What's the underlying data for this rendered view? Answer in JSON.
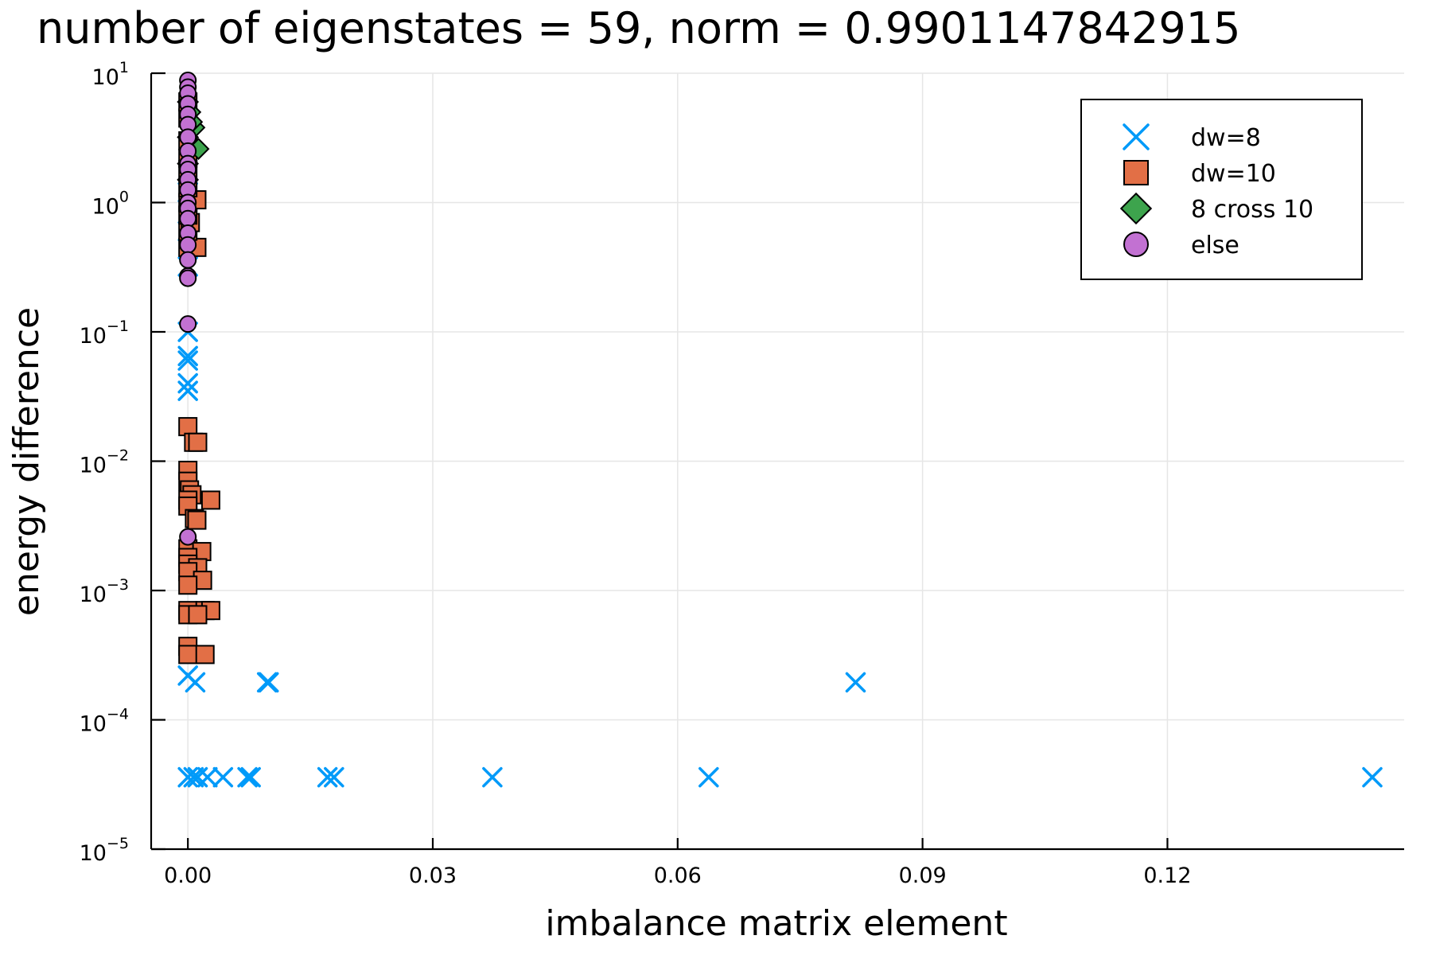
{
  "chart_data": {
    "type": "scatter",
    "title": "number of eigenstates = 59, norm = 0.9901147842915",
    "xlabel": "imbalance matrix element",
    "ylabel": "energy difference",
    "xlim": [
      -0.0045,
      0.149
    ],
    "ylim": [
      1e-05,
      10
    ],
    "yscale": "log",
    "grid": true,
    "legend_position": "top-right",
    "x_ticks": [
      {
        "value": 0.0,
        "label": "0.00"
      },
      {
        "value": 0.03,
        "label": "0.03"
      },
      {
        "value": 0.06,
        "label": "0.06"
      },
      {
        "value": 0.09,
        "label": "0.09"
      },
      {
        "value": 0.12,
        "label": "0.12"
      }
    ],
    "y_ticks": [
      {
        "value": 1e-05,
        "base": "10",
        "exp": "−5"
      },
      {
        "value": 0.0001,
        "base": "10",
        "exp": "−4"
      },
      {
        "value": 0.001,
        "base": "10",
        "exp": "−3"
      },
      {
        "value": 0.01,
        "base": "10",
        "exp": "−2"
      },
      {
        "value": 0.1,
        "base": "10",
        "exp": "−1"
      },
      {
        "value": 1,
        "base": "10",
        "exp": "0"
      },
      {
        "value": 10,
        "base": "10",
        "exp": "1"
      }
    ],
    "series": [
      {
        "name": "dw=8",
        "marker": "x",
        "color": "#009af9",
        "points": [
          [
            0.0,
            0.00022
          ],
          [
            0.0009,
            0.000195
          ],
          [
            0.0097,
            0.000195
          ],
          [
            0.0099,
            0.000195
          ],
          [
            0.0818,
            0.000195
          ],
          [
            0.0,
            3.6e-05
          ],
          [
            0.0007,
            3.6e-05
          ],
          [
            0.0012,
            3.6e-05
          ],
          [
            0.0024,
            3.6e-05
          ],
          [
            0.0043,
            3.6e-05
          ],
          [
            0.0073,
            3.6e-05
          ],
          [
            0.0077,
            3.6e-05
          ],
          [
            0.0171,
            3.6e-05
          ],
          [
            0.0179,
            3.6e-05
          ],
          [
            0.0373,
            3.6e-05
          ],
          [
            0.0638,
            3.6e-05
          ],
          [
            0.1451,
            3.6e-05
          ],
          [
            0.0,
            0.1
          ],
          [
            0.0,
            0.065
          ],
          [
            0.0,
            0.06
          ],
          [
            0.0,
            0.04
          ],
          [
            0.0,
            0.035
          ],
          [
            0.0,
            0.32
          ],
          [
            0.0,
            0.6
          ],
          [
            0.0,
            1.2
          ]
        ]
      },
      {
        "name": "dw=10",
        "marker": "square",
        "color": "#e26f46",
        "points": [
          [
            0.0,
            0.0185
          ],
          [
            0.0007,
            0.014
          ],
          [
            0.0012,
            0.014
          ],
          [
            0.0,
            0.0085
          ],
          [
            0.0,
            0.007
          ],
          [
            0.0002,
            0.006
          ],
          [
            0.0005,
            0.0055
          ],
          [
            0.0,
            0.005
          ],
          [
            0.0028,
            0.005
          ],
          [
            0.0,
            0.0045
          ],
          [
            0.0008,
            0.0036
          ],
          [
            0.0011,
            0.0035
          ],
          [
            0.0,
            0.0021
          ],
          [
            0.0017,
            0.002
          ],
          [
            0.0,
            0.0018
          ],
          [
            0.0,
            0.0016
          ],
          [
            0.0012,
            0.0015
          ],
          [
            0.0,
            0.0014
          ],
          [
            0.0018,
            0.0012
          ],
          [
            0.0,
            0.0011
          ],
          [
            0.0,
            0.0007
          ],
          [
            0.0021,
            0.0007
          ],
          [
            0.0028,
            0.0007
          ],
          [
            0.0,
            0.00065
          ],
          [
            0.0012,
            0.00065
          ],
          [
            0.0,
            0.00037
          ],
          [
            0.0,
            0.00032
          ],
          [
            0.0021,
            0.00032
          ],
          [
            0.0,
            0.45
          ],
          [
            0.0011,
            0.45
          ],
          [
            0.0,
            0.6
          ],
          [
            0.0003,
            0.7
          ],
          [
            0.0,
            0.8
          ],
          [
            0.0,
            1.0
          ],
          [
            0.0011,
            1.05
          ],
          [
            0.0,
            1.3
          ],
          [
            0.0,
            1.8
          ],
          [
            0.0,
            2.2
          ],
          [
            0.0,
            3.0
          ],
          [
            0.0,
            4.5
          ],
          [
            0.0,
            6.0
          ]
        ]
      },
      {
        "name": "8 cross 10",
        "marker": "diamond",
        "color": "#3da44d",
        "points": [
          [
            0.0013,
            2.6
          ],
          [
            0.0008,
            3.8
          ],
          [
            0.0003,
            5.0
          ],
          [
            0.0,
            6.0
          ],
          [
            0.0005,
            4.2
          ],
          [
            0.0,
            3.2
          ],
          [
            0.0,
            2.0
          ],
          [
            0.0,
            1.5
          ]
        ]
      },
      {
        "name": "else",
        "marker": "circle",
        "color": "#c271d2",
        "points": [
          [
            0.0,
            8.8
          ],
          [
            0.0,
            7.8
          ],
          [
            0.0,
            7.0
          ],
          [
            0.0,
            5.8
          ],
          [
            0.0,
            4.8
          ],
          [
            0.0,
            4.0
          ],
          [
            0.0,
            3.2
          ],
          [
            0.0,
            2.5
          ],
          [
            0.0,
            2.0
          ],
          [
            0.0,
            1.8
          ],
          [
            0.0,
            1.5
          ],
          [
            0.0,
            1.25
          ],
          [
            0.0,
            1.0
          ],
          [
            0.0,
            0.9
          ],
          [
            0.0,
            0.75
          ],
          [
            0.0,
            0.58
          ],
          [
            0.0,
            0.47
          ],
          [
            0.0,
            0.36
          ],
          [
            0.0,
            0.27
          ],
          [
            0.0,
            0.26
          ],
          [
            0.0,
            0.115
          ],
          [
            0.0,
            0.0026
          ]
        ]
      }
    ]
  }
}
